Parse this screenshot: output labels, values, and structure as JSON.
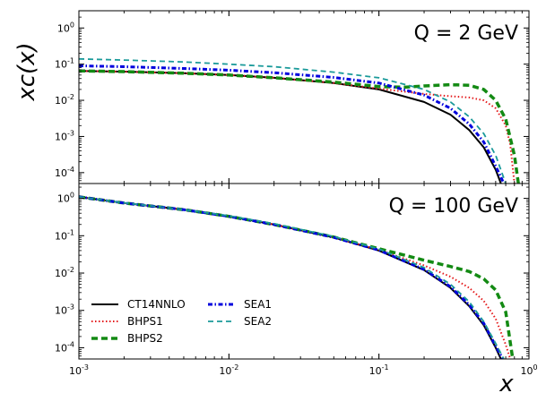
{
  "chart_data": {
    "type": "line",
    "xlabel": "x",
    "ylabel": "xc(x)",
    "xscale": "log",
    "yscale": "log",
    "xlim": [
      0.001,
      1.0
    ],
    "xticks": [
      {
        "v": 0.001,
        "b": "10",
        "e": "-3"
      },
      {
        "v": 0.01,
        "b": "10",
        "e": "-2"
      },
      {
        "v": 0.1,
        "b": "10",
        "e": "-1"
      },
      {
        "v": 1.0,
        "b": "10",
        "e": "0"
      }
    ],
    "yticks": [
      {
        "v": 1,
        "b": "10",
        "e": "0"
      },
      {
        "v": 0.1,
        "b": "10",
        "e": "-1"
      },
      {
        "v": 0.01,
        "b": "10",
        "e": "-2"
      },
      {
        "v": 0.001,
        "b": "10",
        "e": "-3"
      },
      {
        "v": 0.0001,
        "b": "10",
        "e": "-4"
      }
    ],
    "legend": {
      "placement": "lower-left",
      "entries": [
        {
          "name": "CT14NNLO",
          "color": "#000000",
          "style": "solid"
        },
        {
          "name": "BHPS1",
          "color": "#e41a1c",
          "style": "dotted"
        },
        {
          "name": "BHPS2",
          "color": "#138a13",
          "style": "dashed-thick"
        },
        {
          "name": "SEA1",
          "color": "#0000dd",
          "style": "dashdot"
        },
        {
          "name": "SEA2",
          "color": "#1a9a9a",
          "style": "dashed"
        }
      ]
    },
    "panels": [
      {
        "annotation": "Q = 2 GeV",
        "ylim": [
          5e-05,
          3.0
        ],
        "series": [
          {
            "name": "CT14NNLO",
            "x": [
              0.001,
              0.002,
              0.005,
              0.01,
              0.02,
              0.05,
              0.1,
              0.2,
              0.3,
              0.4,
              0.5,
              0.6,
              0.65
            ],
            "y": [
              0.065,
              0.062,
              0.056,
              0.05,
              0.042,
              0.03,
              0.02,
              0.009,
              0.004,
              0.0015,
              0.0005,
              0.00012,
              5e-05
            ]
          },
          {
            "name": "BHPS1",
            "x": [
              0.001,
              0.002,
              0.005,
              0.01,
              0.02,
              0.05,
              0.1,
              0.2,
              0.3,
              0.4,
              0.5,
              0.6,
              0.7,
              0.75,
              0.8
            ],
            "y": [
              0.065,
              0.062,
              0.056,
              0.05,
              0.042,
              0.03,
              0.021,
              0.015,
              0.013,
              0.012,
              0.01,
              0.006,
              0.002,
              0.0006,
              5e-05
            ]
          },
          {
            "name": "BHPS2",
            "x": [
              0.001,
              0.002,
              0.005,
              0.01,
              0.02,
              0.05,
              0.1,
              0.15,
              0.2,
              0.3,
              0.4,
              0.5,
              0.6,
              0.7,
              0.8,
              0.85
            ],
            "y": [
              0.065,
              0.062,
              0.056,
              0.05,
              0.042,
              0.032,
              0.024,
              0.023,
              0.025,
              0.027,
              0.026,
              0.02,
              0.01,
              0.003,
              0.0003,
              5e-05
            ]
          },
          {
            "name": "SEA1",
            "x": [
              0.001,
              0.002,
              0.005,
              0.01,
              0.02,
              0.05,
              0.1,
              0.2,
              0.3,
              0.4,
              0.5,
              0.6,
              0.68
            ],
            "y": [
              0.09,
              0.085,
              0.076,
              0.068,
              0.058,
              0.043,
              0.03,
              0.014,
              0.006,
              0.0022,
              0.0007,
              0.00015,
              5e-05
            ]
          },
          {
            "name": "SEA2",
            "x": [
              0.001,
              0.002,
              0.005,
              0.01,
              0.02,
              0.05,
              0.1,
              0.2,
              0.3,
              0.4,
              0.5,
              0.6,
              0.7
            ],
            "y": [
              0.14,
              0.13,
              0.115,
              0.1,
              0.085,
              0.06,
              0.042,
              0.02,
              0.009,
              0.0035,
              0.0012,
              0.0003,
              5e-05
            ]
          }
        ]
      },
      {
        "annotation": "Q = 100 GeV",
        "ylim": [
          5e-05,
          2.5
        ],
        "series": [
          {
            "name": "CT14NNLO",
            "x": [
              0.001,
              0.002,
              0.005,
              0.01,
              0.02,
              0.05,
              0.1,
              0.2,
              0.3,
              0.4,
              0.5,
              0.6,
              0.65
            ],
            "y": [
              1.1,
              0.75,
              0.5,
              0.33,
              0.2,
              0.09,
              0.04,
              0.012,
              0.004,
              0.0013,
              0.0004,
              0.0001,
              5e-05
            ]
          },
          {
            "name": "BHPS1",
            "x": [
              0.001,
              0.002,
              0.005,
              0.01,
              0.02,
              0.05,
              0.1,
              0.2,
              0.3,
              0.4,
              0.5,
              0.6,
              0.7,
              0.75
            ],
            "y": [
              1.1,
              0.75,
              0.5,
              0.33,
              0.2,
              0.09,
              0.042,
              0.016,
              0.008,
              0.004,
              0.0018,
              0.0006,
              0.00012,
              5e-05
            ]
          },
          {
            "name": "BHPS2",
            "x": [
              0.001,
              0.002,
              0.005,
              0.01,
              0.02,
              0.05,
              0.1,
              0.2,
              0.3,
              0.4,
              0.5,
              0.6,
              0.7,
              0.78
            ],
            "y": [
              1.1,
              0.75,
              0.5,
              0.33,
              0.2,
              0.092,
              0.045,
              0.022,
              0.015,
              0.011,
              0.007,
              0.0035,
              0.0009,
              5e-05
            ]
          },
          {
            "name": "SEA1",
            "x": [
              0.001,
              0.002,
              0.005,
              0.01,
              0.02,
              0.05,
              0.1,
              0.2,
              0.3,
              0.4,
              0.5,
              0.6,
              0.67
            ],
            "y": [
              1.1,
              0.75,
              0.5,
              0.33,
              0.2,
              0.09,
              0.041,
              0.0125,
              0.0043,
              0.0014,
              0.00045,
              0.00011,
              5e-05
            ]
          },
          {
            "name": "SEA2",
            "x": [
              0.001,
              0.002,
              0.005,
              0.01,
              0.02,
              0.05,
              0.1,
              0.2,
              0.3,
              0.4,
              0.5,
              0.6,
              0.68
            ],
            "y": [
              1.1,
              0.76,
              0.5,
              0.34,
              0.21,
              0.095,
              0.044,
              0.014,
              0.005,
              0.0017,
              0.0005,
              0.00013,
              5e-05
            ]
          }
        ]
      }
    ]
  }
}
